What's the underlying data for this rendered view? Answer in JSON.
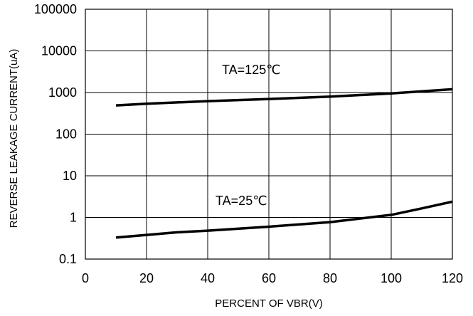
{
  "chart_data": {
    "type": "line",
    "title": "",
    "xlabel": "PERCENT OF VBR(V)",
    "ylabel": "REVERSE LEAKAGE CURRENT(uA)",
    "xlim": [
      0,
      120
    ],
    "ylim": [
      0.1,
      100000
    ],
    "yscale": "log",
    "grid": true,
    "x_ticks": [
      "0",
      "20",
      "40",
      "60",
      "80",
      "100",
      "120"
    ],
    "y_ticks": [
      "0.1",
      "1",
      "10",
      "100",
      "1000",
      "10000",
      "100000"
    ],
    "series": [
      {
        "annotation": "TA=125℃",
        "x": [
          10,
          20,
          40,
          60,
          80,
          100,
          120
        ],
        "y": [
          490,
          540,
          620,
          700,
          800,
          950,
          1200
        ]
      },
      {
        "annotation": "TA=25℃",
        "x": [
          10,
          20,
          30,
          40,
          60,
          80,
          100,
          110,
          120
        ],
        "y": [
          0.33,
          0.38,
          0.44,
          0.48,
          0.6,
          0.77,
          1.15,
          1.65,
          2.4
        ]
      }
    ]
  }
}
